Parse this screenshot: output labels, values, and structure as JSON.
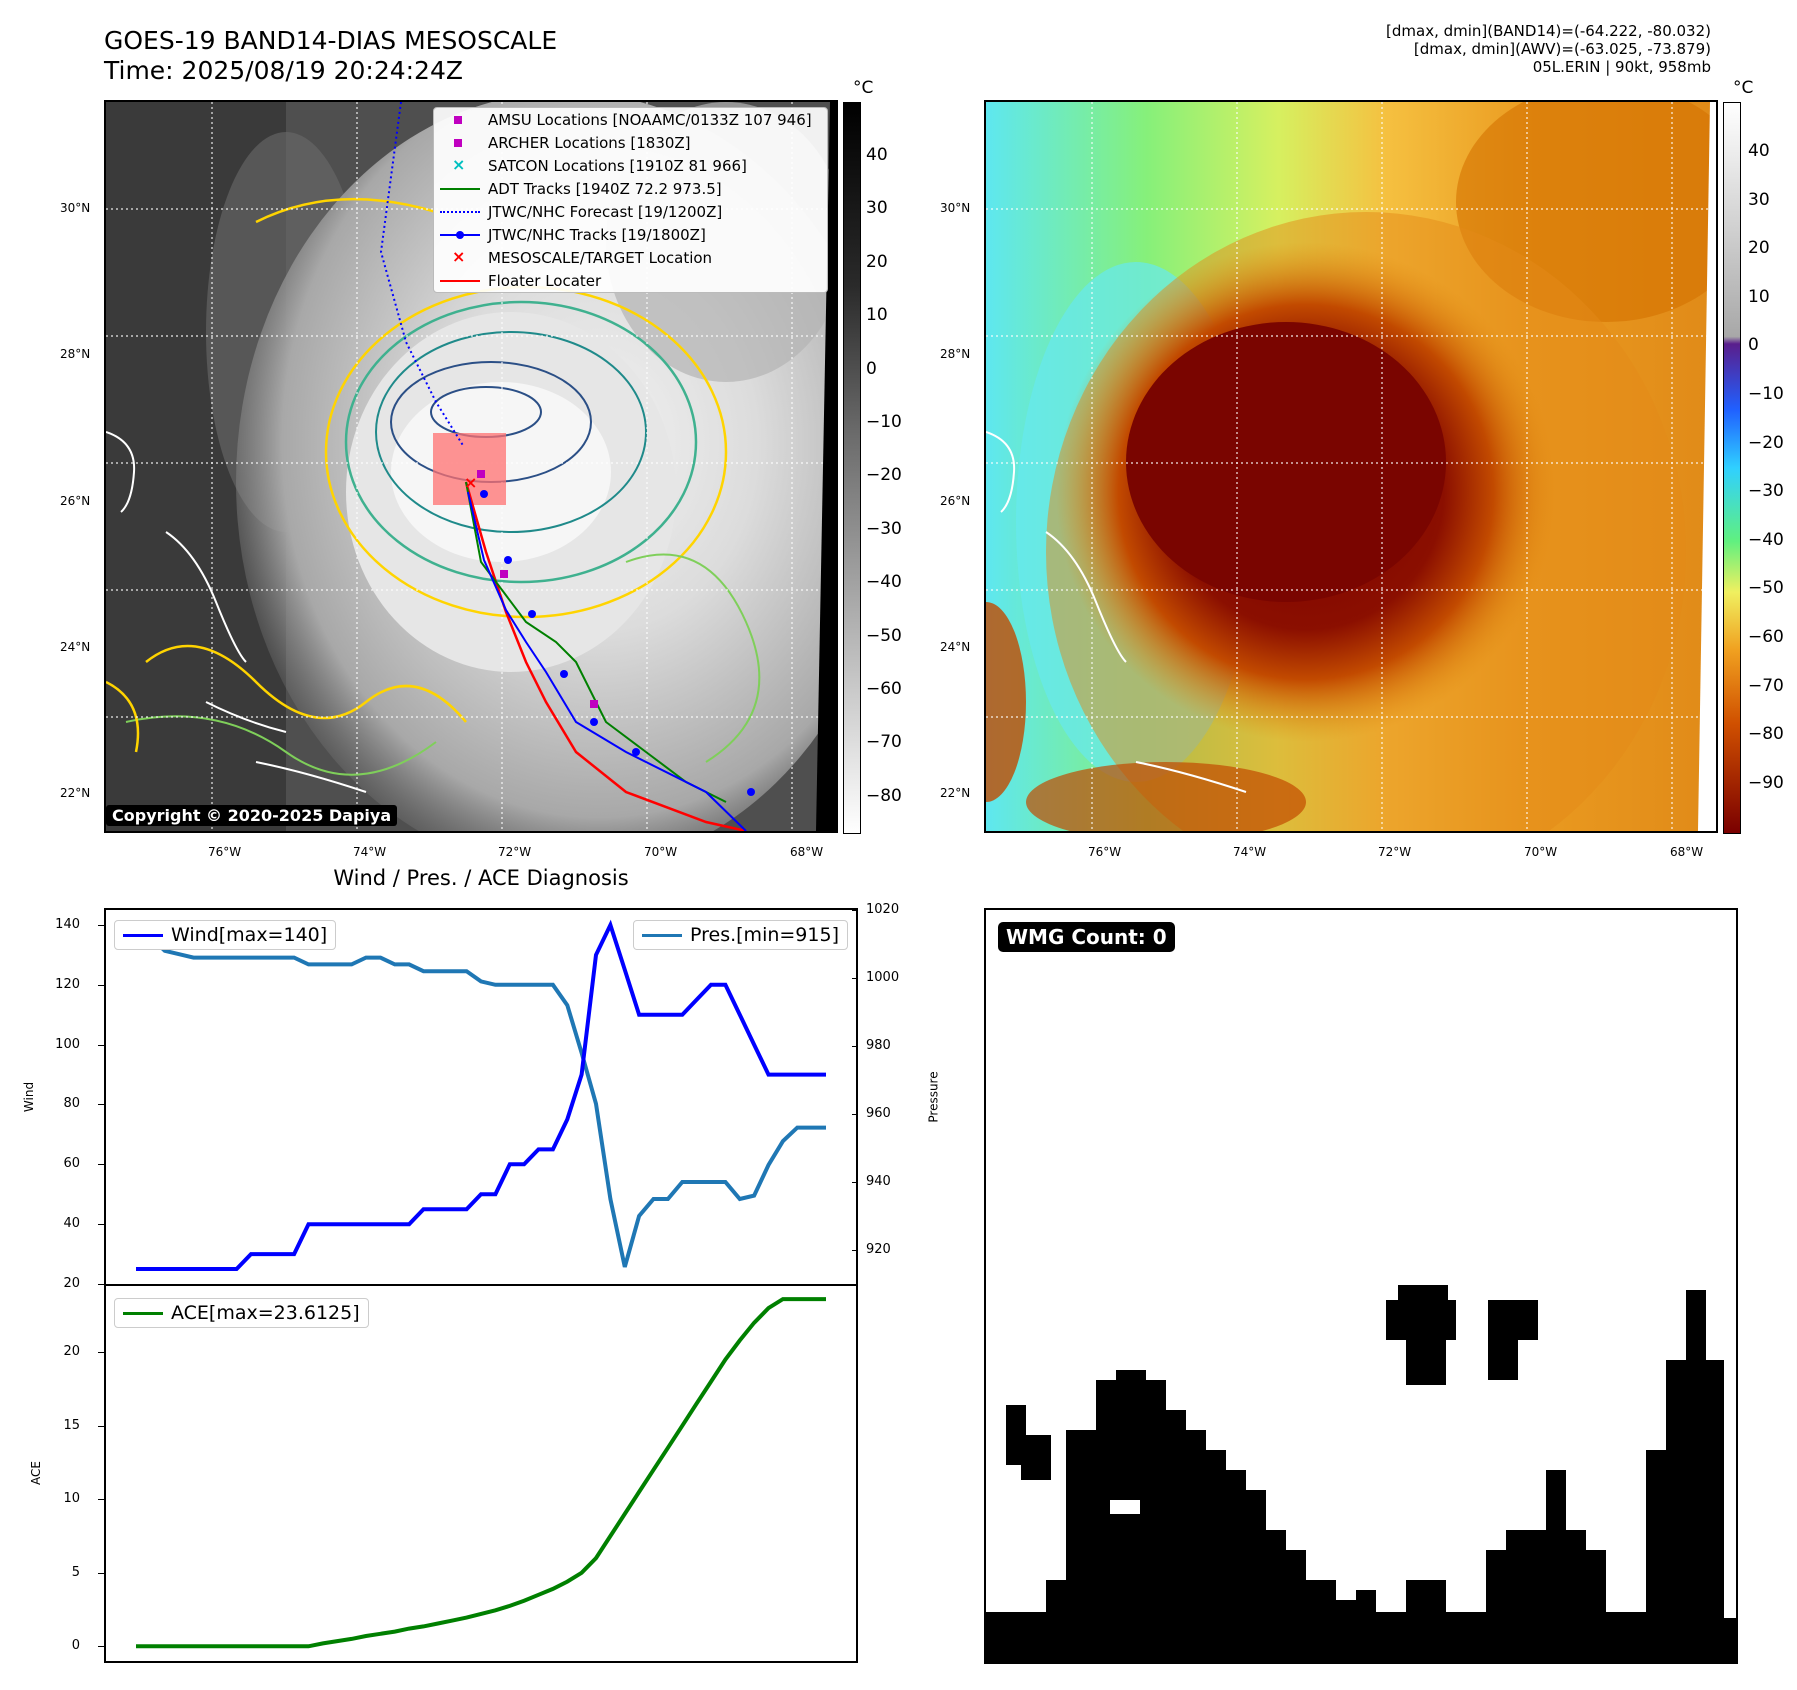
{
  "header": {
    "title_line1": "GOES-19 BAND14-DIAS MESOSCALE",
    "title_line2": "Time: 2025/08/19 20:24:24Z",
    "right_line1": "[dmax, dmin](BAND14)=(-64.222, -80.032)",
    "right_line2": "[dmax, dmin](AWV)=(-63.025, -73.879)",
    "right_line3": "05L.ERIN | 90kt, 958mb"
  },
  "map_axes": {
    "lat_labels": [
      "30°N",
      "28°N",
      "26°N",
      "24°N",
      "22°N"
    ],
    "lon_labels": [
      "76°W",
      "74°W",
      "72°W",
      "70°W",
      "68°W"
    ]
  },
  "colorbar_left": {
    "unit": "°C",
    "ticks": [
      "40",
      "30",
      "20",
      "10",
      "0",
      "−10",
      "−20",
      "−30",
      "−40",
      "−50",
      "−60",
      "−70",
      "−80"
    ]
  },
  "colorbar_right": {
    "unit": "°C",
    "ticks": [
      "40",
      "30",
      "20",
      "10",
      "0",
      "−10",
      "−20",
      "−30",
      "−40",
      "−50",
      "−60",
      "−70",
      "−80",
      "−90"
    ]
  },
  "legend": {
    "items": [
      {
        "label": "AMSU Locations [NOAAMC/0133Z 107 946]",
        "color": "#c000c0",
        "symbol": "square"
      },
      {
        "label": "ARCHER Locations [1830Z]",
        "color": "#c000c0",
        "symbol": "square"
      },
      {
        "label": "SATCON Locations [1910Z 81 966]",
        "color": "#00c0c0",
        "symbol": "x"
      },
      {
        "label": "ADT Tracks [1940Z 72.2 973.5]",
        "color": "#008000",
        "symbol": "line"
      },
      {
        "label": "JTWC/NHC Forecast [19/1200Z]",
        "color": "#0000ff",
        "symbol": "dotted"
      },
      {
        "label": "JTWC/NHC Tracks [19/1800Z]",
        "color": "#0000ff",
        "symbol": "line-dot"
      },
      {
        "label": "MESOSCALE/TARGET Location",
        "color": "#ff0000",
        "symbol": "x"
      },
      {
        "label": "Floater Locater",
        "color": "#ff0000",
        "symbol": "line"
      }
    ]
  },
  "copyright": "Copyright © 2020-2025 Dapiya",
  "diagnosis_title": "Wind / Pres. / ACE Diagnosis",
  "wmg_label": "WMG Count: 0",
  "chart_data": [
    {
      "type": "line",
      "title": "Wind / Pres. / ACE Diagnosis",
      "ylabel": "Wind",
      "ylabel_right": "Pressure",
      "ylim": [
        20,
        145
      ],
      "ylim_right": [
        910,
        1020
      ],
      "y_ticks": [
        "140",
        "120",
        "100",
        "80",
        "60",
        "40",
        "20"
      ],
      "y_ticks_right": [
        "1020",
        "1000",
        "980",
        "960",
        "940",
        "920"
      ],
      "x": [
        0,
        1,
        2,
        3,
        4,
        5,
        6,
        7,
        8,
        9,
        10,
        11,
        12,
        13,
        14,
        15,
        16,
        17,
        18,
        19,
        20,
        21,
        22,
        23,
        24,
        25,
        26,
        27,
        28,
        29,
        30,
        31,
        32,
        33,
        34,
        35,
        36,
        37,
        38,
        39,
        40,
        41,
        42,
        43,
        44,
        45,
        46,
        47,
        48
      ],
      "series": [
        {
          "name": "Wind[max=140]",
          "color": "#0000ff",
          "axis": "left",
          "values": [
            25,
            25,
            25,
            25,
            25,
            25,
            25,
            25,
            30,
            30,
            30,
            30,
            40,
            40,
            40,
            40,
            40,
            40,
            40,
            40,
            45,
            45,
            45,
            45,
            50,
            50,
            60,
            60,
            65,
            65,
            75,
            90,
            130,
            140,
            125,
            110,
            110,
            110,
            110,
            115,
            120,
            120,
            110,
            100,
            90,
            90,
            90,
            90,
            90
          ]
        },
        {
          "name": "Pres.[min=915]",
          "color": "#1f77b4",
          "axis": "right",
          "values": [
            1012,
            1012,
            1008,
            1007,
            1006,
            1006,
            1006,
            1006,
            1006,
            1006,
            1006,
            1006,
            1004,
            1004,
            1004,
            1004,
            1006,
            1006,
            1004,
            1004,
            1002,
            1002,
            1002,
            1002,
            999,
            998,
            998,
            998,
            998,
            998,
            992,
            978,
            963,
            935,
            915,
            930,
            935,
            935,
            940,
            940,
            940,
            940,
            935,
            936,
            945,
            952,
            956,
            956,
            956
          ]
        }
      ],
      "legend": [
        "Wind[max=140]",
        "Pres.[min=915]"
      ]
    },
    {
      "type": "line",
      "ylabel": "ACE",
      "ylim": [
        -1,
        24.5
      ],
      "y_ticks": [
        "20",
        "15",
        "10",
        "5",
        "0"
      ],
      "x": [
        0,
        1,
        2,
        3,
        4,
        5,
        6,
        7,
        8,
        9,
        10,
        11,
        12,
        13,
        14,
        15,
        16,
        17,
        18,
        19,
        20,
        21,
        22,
        23,
        24,
        25,
        26,
        27,
        28,
        29,
        30,
        31,
        32,
        33,
        34,
        35,
        36,
        37,
        38,
        39,
        40,
        41,
        42,
        43,
        44,
        45,
        46,
        47,
        48
      ],
      "series": [
        {
          "name": "ACE[max=23.6125]",
          "color": "#008000",
          "values": [
            0,
            0,
            0,
            0,
            0,
            0,
            0,
            0,
            0,
            0,
            0,
            0,
            0,
            0.2,
            0.35,
            0.5,
            0.7,
            0.85,
            1.0,
            1.2,
            1.35,
            1.55,
            1.75,
            1.95,
            2.2,
            2.45,
            2.75,
            3.1,
            3.5,
            3.9,
            4.4,
            5.0,
            6.0,
            7.5,
            9.0,
            10.5,
            12.0,
            13.5,
            15.0,
            16.5,
            18.0,
            19.5,
            20.8,
            22.0,
            23.0,
            23.6125,
            23.6125,
            23.6125,
            23.6125
          ]
        }
      ],
      "legend": [
        "ACE[max=23.6125]"
      ]
    }
  ]
}
